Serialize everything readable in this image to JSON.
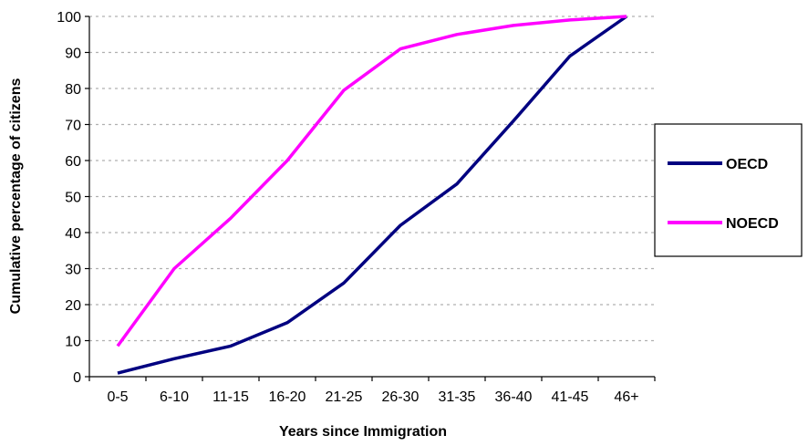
{
  "chart_data": {
    "type": "line",
    "title": "",
    "xlabel": "Years since Immigration",
    "ylabel": "Cumulative percentage of citizens",
    "categories": [
      "0-5",
      "6-10",
      "11-15",
      "16-20",
      "21-25",
      "26-30",
      "31-35",
      "36-40",
      "41-45",
      "46+"
    ],
    "ylim": [
      0,
      100
    ],
    "yticks": [
      "0",
      "10",
      "20",
      "30",
      "40",
      "50",
      "60",
      "70",
      "80",
      "90",
      "100"
    ],
    "grid": "horizontal-dashed",
    "legend": "right",
    "series": [
      {
        "name": "OECD",
        "color": "#000080",
        "values": [
          1,
          5,
          8.5,
          15,
          26,
          42,
          53.5,
          71,
          89,
          100
        ]
      },
      {
        "name": "NOECD",
        "color": "#ff00ff",
        "values": [
          8.5,
          30,
          44,
          60,
          79.5,
          91,
          95,
          97.5,
          99,
          100
        ]
      }
    ]
  }
}
